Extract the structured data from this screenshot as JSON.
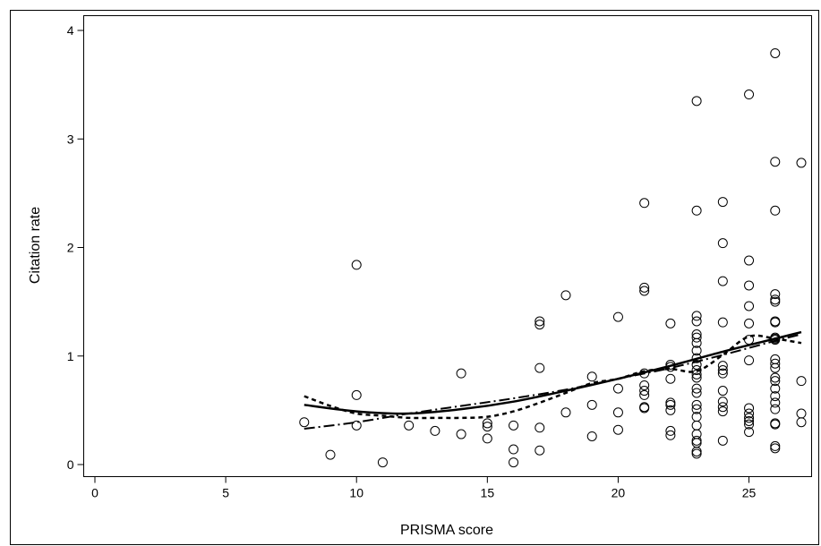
{
  "chart_data": {
    "type": "scatter",
    "title": "",
    "xlabel": "PRISMA score",
    "ylabel": "Citation rate",
    "xlim": [
      0,
      27
    ],
    "ylim": [
      0,
      4
    ],
    "xticks": [
      0,
      5,
      10,
      15,
      20,
      25
    ],
    "yticks": [
      0,
      1,
      2,
      3,
      4
    ],
    "grid": false,
    "points": [
      [
        8,
        0.39
      ],
      [
        9,
        0.09
      ],
      [
        10,
        1.84
      ],
      [
        10,
        0.64
      ],
      [
        10,
        0.36
      ],
      [
        11,
        0.02
      ],
      [
        12,
        0.36
      ],
      [
        13,
        0.31
      ],
      [
        14,
        0.84
      ],
      [
        14,
        0.28
      ],
      [
        15,
        0.38
      ],
      [
        15,
        0.35
      ],
      [
        15,
        0.24
      ],
      [
        16,
        0.36
      ],
      [
        16,
        0.14
      ],
      [
        16,
        0.02
      ],
      [
        17,
        1.32
      ],
      [
        17,
        1.29
      ],
      [
        17,
        0.89
      ],
      [
        17,
        0.34
      ],
      [
        17,
        0.13
      ],
      [
        18,
        1.56
      ],
      [
        18,
        0.48
      ],
      [
        19,
        0.81
      ],
      [
        19,
        0.55
      ],
      [
        19,
        0.26
      ],
      [
        20,
        1.36
      ],
      [
        20,
        0.7
      ],
      [
        20,
        0.48
      ],
      [
        20,
        0.32
      ],
      [
        21,
        2.41
      ],
      [
        21,
        1.63
      ],
      [
        21,
        1.6
      ],
      [
        21,
        0.84
      ],
      [
        21,
        0.73
      ],
      [
        21,
        0.68
      ],
      [
        21,
        0.64
      ],
      [
        21,
        0.53
      ],
      [
        21,
        0.52
      ],
      [
        22,
        1.3
      ],
      [
        22,
        0.92
      ],
      [
        22,
        0.9
      ],
      [
        22,
        0.79
      ],
      [
        22,
        0.57
      ],
      [
        22,
        0.55
      ],
      [
        22,
        0.5
      ],
      [
        22,
        0.31
      ],
      [
        22,
        0.27
      ],
      [
        23,
        3.35
      ],
      [
        23,
        2.34
      ],
      [
        23,
        1.37
      ],
      [
        23,
        1.32
      ],
      [
        23,
        1.2
      ],
      [
        23,
        1.17
      ],
      [
        23,
        1.12
      ],
      [
        23,
        1.05
      ],
      [
        23,
        0.98
      ],
      [
        23,
        0.92
      ],
      [
        23,
        0.87
      ],
      [
        23,
        0.83
      ],
      [
        23,
        0.8
      ],
      [
        23,
        0.7
      ],
      [
        23,
        0.66
      ],
      [
        23,
        0.55
      ],
      [
        23,
        0.51
      ],
      [
        23,
        0.44
      ],
      [
        23,
        0.36
      ],
      [
        23,
        0.28
      ],
      [
        23,
        0.22
      ],
      [
        23,
        0.2
      ],
      [
        23,
        0.12
      ],
      [
        23,
        0.1
      ],
      [
        24,
        2.42
      ],
      [
        24,
        2.04
      ],
      [
        24,
        1.69
      ],
      [
        24,
        1.31
      ],
      [
        24,
        0.91
      ],
      [
        24,
        0.87
      ],
      [
        24,
        0.84
      ],
      [
        24,
        0.68
      ],
      [
        24,
        0.58
      ],
      [
        24,
        0.53
      ],
      [
        24,
        0.49
      ],
      [
        24,
        0.22
      ],
      [
        25,
        3.41
      ],
      [
        25,
        1.88
      ],
      [
        25,
        1.65
      ],
      [
        25,
        1.46
      ],
      [
        25,
        1.3
      ],
      [
        25,
        1.15
      ],
      [
        25,
        0.96
      ],
      [
        25,
        0.52
      ],
      [
        25,
        0.47
      ],
      [
        25,
        0.43
      ],
      [
        25,
        0.4
      ],
      [
        25,
        0.37
      ],
      [
        25,
        0.3
      ],
      [
        26,
        3.79
      ],
      [
        26,
        2.79
      ],
      [
        26,
        2.34
      ],
      [
        26,
        1.57
      ],
      [
        26,
        1.52
      ],
      [
        26,
        1.5
      ],
      [
        26,
        1.32
      ],
      [
        26,
        1.31
      ],
      [
        26,
        1.17
      ],
      [
        26,
        1.16
      ],
      [
        26,
        1.15
      ],
      [
        26,
        0.97
      ],
      [
        26,
        0.93
      ],
      [
        26,
        0.89
      ],
      [
        26,
        0.8
      ],
      [
        26,
        0.77
      ],
      [
        26,
        0.7
      ],
      [
        26,
        0.63
      ],
      [
        26,
        0.57
      ],
      [
        26,
        0.51
      ],
      [
        26,
        0.38
      ],
      [
        26,
        0.37
      ],
      [
        26,
        0.17
      ],
      [
        26,
        0.15
      ],
      [
        27,
        2.78
      ],
      [
        27,
        0.77
      ],
      [
        27,
        0.47
      ],
      [
        27,
        0.39
      ]
    ],
    "fits": [
      {
        "style": "solid",
        "points": [
          [
            8,
            0.55
          ],
          [
            10,
            0.49
          ],
          [
            12,
            0.47
          ],
          [
            14,
            0.51
          ],
          [
            16,
            0.58
          ],
          [
            18,
            0.68
          ],
          [
            20,
            0.79
          ],
          [
            22,
            0.91
          ],
          [
            24,
            1.04
          ],
          [
            26,
            1.16
          ],
          [
            27,
            1.22
          ]
        ]
      },
      {
        "style": "dash",
        "points": [
          [
            8,
            0.63
          ],
          [
            9,
            0.54
          ],
          [
            10,
            0.47
          ],
          [
            11,
            0.45
          ],
          [
            12,
            0.43
          ],
          [
            13,
            0.43
          ],
          [
            14,
            0.43
          ],
          [
            15,
            0.44
          ],
          [
            16,
            0.49
          ],
          [
            17,
            0.57
          ],
          [
            18,
            0.66
          ],
          [
            19,
            0.75
          ],
          [
            20,
            0.79
          ],
          [
            21,
            0.86
          ],
          [
            22,
            0.88
          ],
          [
            23,
            0.86
          ],
          [
            24,
            1.01
          ],
          [
            25,
            1.18
          ],
          [
            26,
            1.16
          ],
          [
            27,
            1.12
          ]
        ]
      },
      {
        "style": "dash-dot",
        "points": [
          [
            8,
            0.33
          ],
          [
            10,
            0.39
          ],
          [
            12,
            0.47
          ],
          [
            14,
            0.54
          ],
          [
            16,
            0.61
          ],
          [
            18,
            0.69
          ],
          [
            20,
            0.79
          ],
          [
            22,
            0.89
          ],
          [
            24,
            1.01
          ],
          [
            26,
            1.14
          ],
          [
            27,
            1.2
          ]
        ]
      }
    ]
  }
}
